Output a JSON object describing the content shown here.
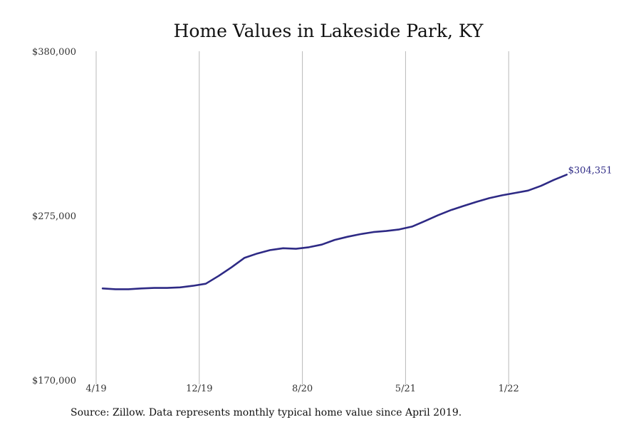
{
  "chart_data": {
    "type": "line",
    "title": "Home Values in Lakeside Park, KY",
    "xlabel": "",
    "ylabel": "",
    "ylim": [
      170000,
      380000
    ],
    "yticks": [
      170000,
      275000,
      380000
    ],
    "ytick_labels": [
      "$170,000",
      "$275,000",
      "$380,000"
    ],
    "xlim": [
      0,
      38
    ],
    "xticks": [
      0,
      8,
      16,
      24,
      32
    ],
    "xtick_labels": [
      "4/19",
      "12/19",
      "8/20",
      "5/21",
      "1/22"
    ],
    "grid": {
      "vertical": true,
      "horizontal": false
    },
    "legend": "none",
    "series": [
      {
        "color": "#2e2a85",
        "x": [
          0,
          1,
          2,
          3,
          4,
          5,
          6,
          7,
          8,
          9,
          10,
          11,
          12,
          13,
          14,
          15,
          16,
          17,
          18,
          19,
          20,
          21,
          22,
          23,
          24,
          25,
          26,
          27,
          28,
          29,
          30,
          31,
          32,
          33,
          34,
          35,
          36
        ],
        "values": [
          228500,
          228000,
          228000,
          228500,
          228800,
          228800,
          229200,
          230200,
          231500,
          236500,
          242000,
          248000,
          250800,
          253000,
          254200,
          253800,
          254800,
          256500,
          259500,
          261500,
          263200,
          264500,
          265200,
          266200,
          268000,
          271500,
          275200,
          278500,
          281200,
          283800,
          286200,
          288000,
          289500,
          291000,
          294000,
          297800,
          301200
        ],
        "end_label": "$304,351"
      }
    ]
  },
  "source_note": "Source: Zillow. Data represents monthly typical home value since April 2019."
}
